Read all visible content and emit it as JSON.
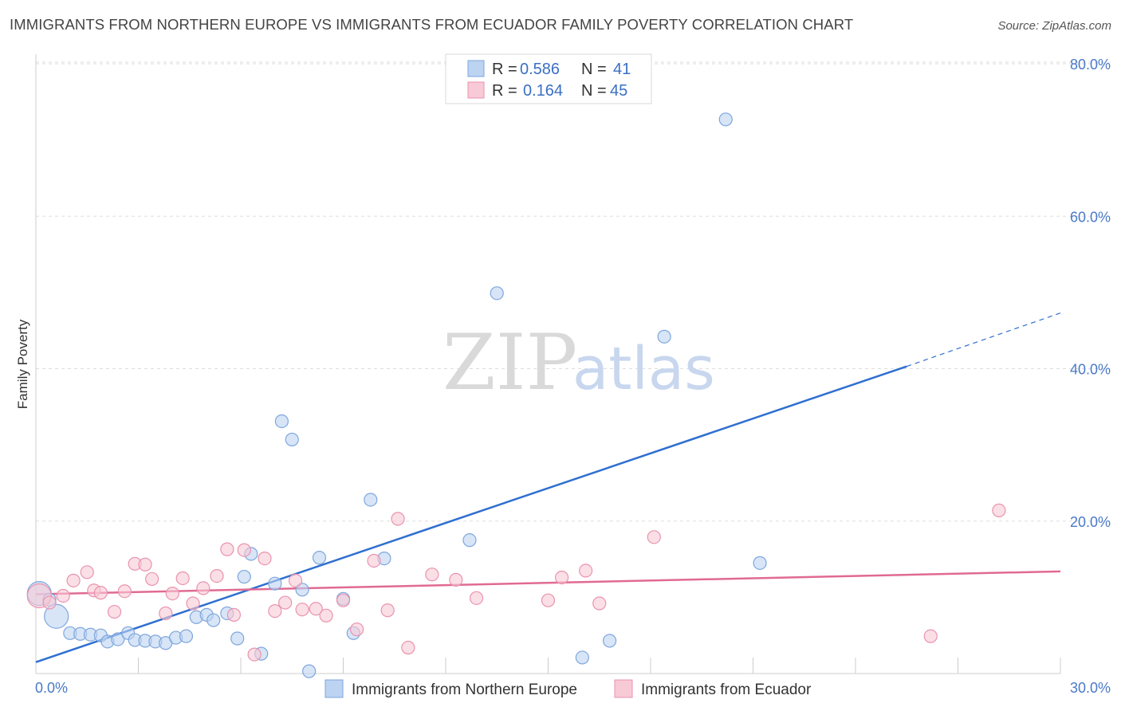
{
  "header": {
    "title": "IMMIGRANTS FROM NORTHERN EUROPE VS IMMIGRANTS FROM ECUADOR FAMILY POVERTY CORRELATION CHART",
    "source": "Source: ZipAtlas.com"
  },
  "watermark": {
    "zip": "ZIP",
    "atlas": "atlas"
  },
  "colors": {
    "blue_fill": "#bcd3f2",
    "blue_stroke": "#7ea6dc",
    "blue_line": "#2f6fd0",
    "pink_fill": "#f8c9d6",
    "pink_stroke": "#e993ae",
    "pink_line": "#e06a93",
    "grid": "#dddddd",
    "tick_text": "#4a7ac7"
  },
  "legend": {
    "rows": [
      {
        "r_label": "R =",
        "r_value": "0.586",
        "n_label": "N =",
        "n_value": "41"
      },
      {
        "r_label": "R =",
        "r_value": "0.164",
        "n_label": "N =",
        "n_value": "45"
      }
    ]
  },
  "chart_data": {
    "type": "scatter",
    "title": "IMMIGRANTS FROM NORTHERN EUROPE VS IMMIGRANTS FROM ECUADOR FAMILY POVERTY CORRELATION CHART",
    "xlabel": "",
    "ylabel": "Family Poverty",
    "xlim": [
      0,
      30
    ],
    "ylim": [
      0,
      80
    ],
    "x_tick_labels": [
      "0.0%",
      "30.0%"
    ],
    "y_ticks": [
      20,
      40,
      60,
      80
    ],
    "y_tick_labels": [
      "20.0%",
      "40.0%",
      "60.0%",
      "80.0%"
    ],
    "grid": true,
    "legend_position": "top-center",
    "series": [
      {
        "name": "Immigrants from Northern Europe",
        "color": "#7ea6dc",
        "r": 0.586,
        "n": 41,
        "trend": {
          "x": [
            0,
            25.5
          ],
          "y": [
            1.5,
            40.3
          ],
          "extend_to_x": 30,
          "extend_to_y": 47.3
        },
        "points": [
          {
            "x": 0.1,
            "y": 10.5,
            "big": true
          },
          {
            "x": 0.4,
            "y": 9.7
          },
          {
            "x": 0.6,
            "y": 7.5,
            "big": true
          },
          {
            "x": 1.0,
            "y": 5.3
          },
          {
            "x": 1.3,
            "y": 5.2
          },
          {
            "x": 1.6,
            "y": 5.1
          },
          {
            "x": 1.9,
            "y": 5.0
          },
          {
            "x": 2.1,
            "y": 4.2
          },
          {
            "x": 2.4,
            "y": 4.5
          },
          {
            "x": 2.7,
            "y": 5.3
          },
          {
            "x": 2.9,
            "y": 4.4
          },
          {
            "x": 3.2,
            "y": 4.3
          },
          {
            "x": 3.5,
            "y": 4.2
          },
          {
            "x": 3.8,
            "y": 4.0
          },
          {
            "x": 4.1,
            "y": 4.7
          },
          {
            "x": 4.4,
            "y": 4.9
          },
          {
            "x": 4.7,
            "y": 7.4
          },
          {
            "x": 5.0,
            "y": 7.7
          },
          {
            "x": 5.2,
            "y": 7.0
          },
          {
            "x": 5.6,
            "y": 7.9
          },
          {
            "x": 5.9,
            "y": 4.6
          },
          {
            "x": 6.1,
            "y": 12.7
          },
          {
            "x": 6.3,
            "y": 15.7
          },
          {
            "x": 6.6,
            "y": 2.6
          },
          {
            "x": 7.0,
            "y": 11.8
          },
          {
            "x": 7.2,
            "y": 33.1
          },
          {
            "x": 7.5,
            "y": 30.7
          },
          {
            "x": 7.8,
            "y": 11.0
          },
          {
            "x": 8.0,
            "y": 0.3
          },
          {
            "x": 8.3,
            "y": 15.2
          },
          {
            "x": 9.0,
            "y": 9.8
          },
          {
            "x": 9.3,
            "y": 5.3
          },
          {
            "x": 9.8,
            "y": 22.8
          },
          {
            "x": 10.2,
            "y": 15.1
          },
          {
            "x": 12.7,
            "y": 17.5
          },
          {
            "x": 13.5,
            "y": 49.9
          },
          {
            "x": 16.0,
            "y": 2.1
          },
          {
            "x": 16.8,
            "y": 4.3
          },
          {
            "x": 18.4,
            "y": 44.2
          },
          {
            "x": 20.2,
            "y": 72.7
          },
          {
            "x": 21.2,
            "y": 14.5
          }
        ]
      },
      {
        "name": "Immigrants from Ecuador",
        "color": "#e993ae",
        "r": 0.164,
        "n": 45,
        "trend": {
          "x": [
            0,
            30
          ],
          "y": [
            10.4,
            13.4
          ]
        },
        "points": [
          {
            "x": 0.1,
            "y": 10.2,
            "big": true
          },
          {
            "x": 0.4,
            "y": 9.3
          },
          {
            "x": 0.8,
            "y": 10.2
          },
          {
            "x": 1.1,
            "y": 12.2
          },
          {
            "x": 1.5,
            "y": 13.3
          },
          {
            "x": 1.7,
            "y": 10.9
          },
          {
            "x": 1.9,
            "y": 10.6
          },
          {
            "x": 2.3,
            "y": 8.1
          },
          {
            "x": 2.6,
            "y": 10.8
          },
          {
            "x": 2.9,
            "y": 14.4
          },
          {
            "x": 3.2,
            "y": 14.3
          },
          {
            "x": 3.4,
            "y": 12.4
          },
          {
            "x": 3.8,
            "y": 7.9
          },
          {
            "x": 4.0,
            "y": 10.5
          },
          {
            "x": 4.3,
            "y": 12.5
          },
          {
            "x": 4.6,
            "y": 9.2
          },
          {
            "x": 4.9,
            "y": 11.2
          },
          {
            "x": 5.3,
            "y": 12.8
          },
          {
            "x": 5.6,
            "y": 16.3
          },
          {
            "x": 5.8,
            "y": 7.7
          },
          {
            "x": 6.1,
            "y": 16.2
          },
          {
            "x": 6.4,
            "y": 2.5
          },
          {
            "x": 6.7,
            "y": 15.1
          },
          {
            "x": 7.0,
            "y": 8.2
          },
          {
            "x": 7.3,
            "y": 9.3
          },
          {
            "x": 7.6,
            "y": 12.2
          },
          {
            "x": 7.8,
            "y": 8.4
          },
          {
            "x": 8.2,
            "y": 8.5
          },
          {
            "x": 8.5,
            "y": 7.6
          },
          {
            "x": 9.0,
            "y": 9.6
          },
          {
            "x": 9.4,
            "y": 5.8
          },
          {
            "x": 9.9,
            "y": 14.8
          },
          {
            "x": 10.3,
            "y": 8.3
          },
          {
            "x": 10.6,
            "y": 20.3
          },
          {
            "x": 10.9,
            "y": 3.4
          },
          {
            "x": 11.6,
            "y": 13.0
          },
          {
            "x": 12.3,
            "y": 12.3
          },
          {
            "x": 12.9,
            "y": 9.9
          },
          {
            "x": 15.0,
            "y": 9.6
          },
          {
            "x": 15.4,
            "y": 12.6
          },
          {
            "x": 16.1,
            "y": 13.5
          },
          {
            "x": 16.5,
            "y": 9.2
          },
          {
            "x": 18.1,
            "y": 17.9
          },
          {
            "x": 26.2,
            "y": 4.9
          },
          {
            "x": 28.2,
            "y": 21.4
          }
        ]
      }
    ]
  }
}
